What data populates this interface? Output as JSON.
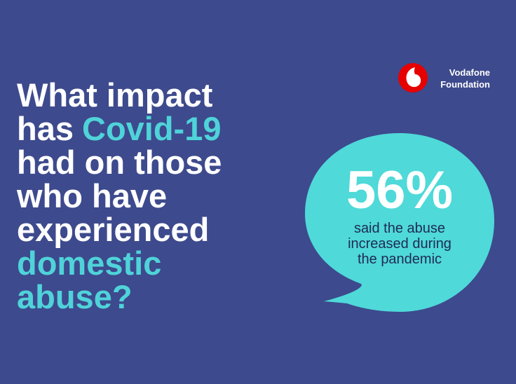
{
  "headline": {
    "lines": [
      [
        {
          "text": "What impact",
          "highlight": false
        }
      ],
      [
        {
          "text": "has",
          "highlight": false
        },
        {
          "text": "Covid-19",
          "highlight": true
        }
      ],
      [
        {
          "text": "had on those",
          "highlight": false
        }
      ],
      [
        {
          "text": "who have",
          "highlight": false
        }
      ],
      [
        {
          "text": "experienced",
          "highlight": false
        }
      ],
      [
        {
          "text": "domestic",
          "highlight": true
        }
      ],
      [
        {
          "text": "abuse?",
          "highlight": true
        }
      ]
    ]
  },
  "logo": {
    "lines": [
      "Vodafone",
      "Foundation"
    ]
  },
  "stat": {
    "figure": "56%",
    "caption": [
      "said the abuse",
      "increased during",
      "the pandemic"
    ]
  }
}
